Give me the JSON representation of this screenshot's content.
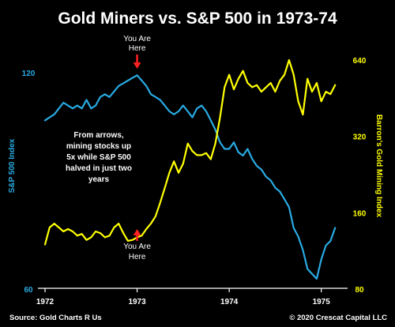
{
  "chart_data": {
    "type": "line",
    "title": "Gold Miners vs. S&P 500 in 1973-74",
    "x_ticks": [
      "1972",
      "1973",
      "1974",
      "1975"
    ],
    "xlim": [
      1972.0,
      1975.2
    ],
    "left_axis": {
      "label": "S&P 500 Index",
      "ticks": [
        {
          "value": 120,
          "label": "120"
        },
        {
          "value": 60,
          "label": "60"
        }
      ],
      "scale": "log",
      "ylim": [
        60,
        120
      ],
      "color": "#29abe2"
    },
    "right_axis": {
      "label": "Barron's Gold Mining Index",
      "ticks": [
        {
          "value": 640,
          "label": "640"
        },
        {
          "value": 320,
          "label": "320"
        },
        {
          "value": 160,
          "label": "160"
        },
        {
          "value": 80,
          "label": "80"
        }
      ],
      "scale": "log",
      "ylim": [
        80,
        640
      ],
      "color": "#ffff00"
    },
    "series": [
      {
        "axis": "left",
        "color": "#29abe2",
        "x": [
          1972.0,
          1972.05,
          1972.1,
          1972.15,
          1972.2,
          1972.25,
          1972.3,
          1972.35,
          1972.4,
          1972.45,
          1972.5,
          1972.55,
          1972.6,
          1972.65,
          1972.7,
          1972.75,
          1972.8,
          1972.85,
          1972.9,
          1972.95,
          1973.0,
          1973.05,
          1973.1,
          1973.15,
          1973.2,
          1973.25,
          1973.3,
          1973.35,
          1973.4,
          1973.45,
          1973.5,
          1973.55,
          1973.6,
          1973.65,
          1973.7,
          1973.75,
          1973.8,
          1973.85,
          1973.9,
          1973.95,
          1974.0,
          1974.05,
          1974.1,
          1974.15,
          1974.2,
          1974.25,
          1974.3,
          1974.35,
          1974.4,
          1974.45,
          1974.5,
          1974.55,
          1974.6,
          1974.65,
          1974.7,
          1974.75,
          1974.8,
          1974.85,
          1974.9,
          1974.95,
          1975.0,
          1975.05,
          1975.1,
          1975.15
        ],
        "values": [
          103,
          104,
          105,
          107,
          109,
          108,
          107,
          108,
          107,
          110,
          107,
          108,
          111,
          112,
          111,
          113,
          115,
          116,
          117,
          118,
          119,
          117,
          115,
          112,
          111,
          110,
          108,
          106,
          105,
          106,
          108,
          106,
          104,
          107,
          108,
          106,
          103,
          100,
          96,
          94,
          94,
          96,
          93,
          92,
          94,
          91,
          89,
          88,
          86,
          85,
          83,
          82,
          80,
          78,
          73,
          71,
          68,
          64,
          63,
          62,
          66,
          69,
          70,
          73
        ]
      },
      {
        "axis": "right",
        "color": "#ffff00",
        "x": [
          1972.0,
          1972.05,
          1972.1,
          1972.15,
          1972.2,
          1972.25,
          1972.3,
          1972.35,
          1972.4,
          1972.45,
          1972.5,
          1972.55,
          1972.6,
          1972.65,
          1972.7,
          1972.75,
          1972.8,
          1972.85,
          1972.9,
          1972.95,
          1973.0,
          1973.05,
          1973.1,
          1973.15,
          1973.2,
          1973.25,
          1973.3,
          1973.35,
          1973.4,
          1973.45,
          1973.5,
          1973.55,
          1973.6,
          1973.65,
          1973.7,
          1973.75,
          1973.8,
          1973.85,
          1973.9,
          1973.95,
          1974.0,
          1974.05,
          1974.1,
          1974.15,
          1974.2,
          1974.25,
          1974.3,
          1974.35,
          1974.4,
          1974.45,
          1974.5,
          1974.55,
          1974.6,
          1974.65,
          1974.7,
          1974.75,
          1974.8,
          1974.85,
          1974.9,
          1974.95,
          1975.0,
          1975.05,
          1975.1,
          1975.15
        ],
        "values": [
          120,
          140,
          145,
          140,
          135,
          138,
          135,
          130,
          132,
          125,
          128,
          135,
          133,
          128,
          130,
          140,
          145,
          133,
          124,
          125,
          128,
          130,
          138,
          145,
          155,
          175,
          200,
          230,
          255,
          230,
          250,
          300,
          280,
          270,
          270,
          275,
          260,
          300,
          380,
          500,
          560,
          490,
          540,
          580,
          520,
          500,
          510,
          480,
          500,
          520,
          480,
          530,
          560,
          640,
          560,
          440,
          390,
          540,
          480,
          520,
          440,
          480,
          470,
          510
        ]
      }
    ],
    "annotations": [
      {
        "kind": "arrow-down",
        "x": 1973.0,
        "text": [
          "You Are",
          "Here"
        ],
        "color": "#ff2020"
      },
      {
        "kind": "arrow-up",
        "x": 1973.0,
        "text": [
          "You Are",
          "Here"
        ],
        "color": "#ff2020"
      },
      {
        "kind": "note",
        "text": [
          "From arrows,",
          "mining stocks up",
          "5x while S&P 500",
          "halved in just two",
          "years"
        ]
      }
    ],
    "grid": false,
    "legend": "none"
  },
  "footer": {
    "source": "Source: Gold Charts R Us",
    "copyright": "© 2020 Crescat Capital LLC"
  }
}
